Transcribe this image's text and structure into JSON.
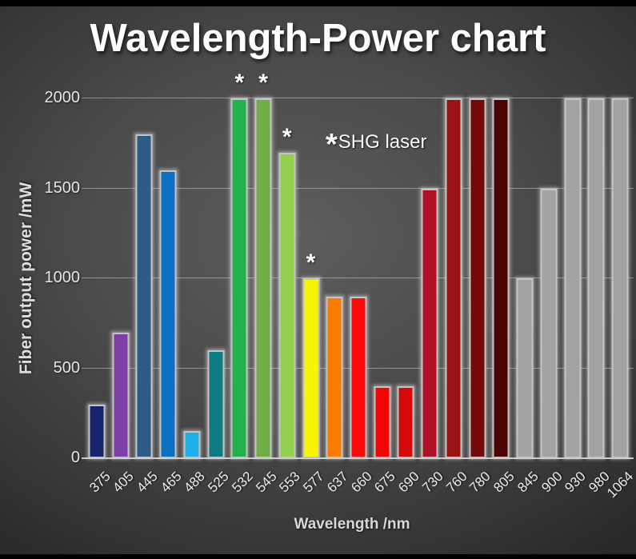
{
  "slide": {
    "title": "Wavelength-Power chart"
  },
  "chart_data": {
    "type": "bar",
    "title": "Wavelength-Power chart",
    "xlabel": "Wavelength /nm",
    "ylabel": "Fiber output power /mW",
    "ylim": [
      0,
      2000
    ],
    "yticks": [
      0,
      500,
      1000,
      1500,
      2000
    ],
    "grid": true,
    "legend": {
      "marker": "*",
      "label": "SHG laser",
      "position": "upper-middle"
    },
    "shg_marker": "*",
    "bars": [
      {
        "wavelength": "375",
        "power": 300,
        "color": "#16246b",
        "shg": false
      },
      {
        "wavelength": "405",
        "power": 700,
        "color": "#7b3fa5",
        "shg": false
      },
      {
        "wavelength": "445",
        "power": 1800,
        "color": "#2e5a87",
        "shg": false
      },
      {
        "wavelength": "465",
        "power": 1600,
        "color": "#0c70c2",
        "shg": false
      },
      {
        "wavelength": "488",
        "power": 150,
        "color": "#1faee9",
        "shg": false
      },
      {
        "wavelength": "525",
        "power": 600,
        "color": "#0e7b82",
        "shg": false
      },
      {
        "wavelength": "532",
        "power": 2000,
        "color": "#22b14c",
        "shg": true
      },
      {
        "wavelength": "545",
        "power": 2000,
        "color": "#70ad47",
        "shg": true
      },
      {
        "wavelength": "553",
        "power": 1700,
        "color": "#92d050",
        "shg": true
      },
      {
        "wavelength": "577",
        "power": 1000,
        "color": "#faf400",
        "shg": true
      },
      {
        "wavelength": "637",
        "power": 900,
        "color": "#f97c00",
        "shg": false
      },
      {
        "wavelength": "660",
        "power": 900,
        "color": "#fa0a0a",
        "shg": false
      },
      {
        "wavelength": "675",
        "power": 400,
        "color": "#f50505",
        "shg": false
      },
      {
        "wavelength": "690",
        "power": 400,
        "color": "#d40a0a",
        "shg": false
      },
      {
        "wavelength": "730",
        "power": 1500,
        "color": "#b01025",
        "shg": false
      },
      {
        "wavelength": "760",
        "power": 2000,
        "color": "#9b1212",
        "shg": false
      },
      {
        "wavelength": "780",
        "power": 2000,
        "color": "#730909",
        "shg": false
      },
      {
        "wavelength": "805",
        "power": 2000,
        "color": "#4a0404",
        "shg": false
      },
      {
        "wavelength": "845",
        "power": 1000,
        "color": "#a3a3a3",
        "shg": false
      },
      {
        "wavelength": "900",
        "power": 1500,
        "color": "#a3a3a3",
        "shg": false
      },
      {
        "wavelength": "930",
        "power": 2000,
        "color": "#a3a3a3",
        "shg": false
      },
      {
        "wavelength": "980",
        "power": 2000,
        "color": "#a3a3a3",
        "shg": false
      },
      {
        "wavelength": "1064",
        "power": 2000,
        "color": "#a3a3a3",
        "shg": false
      }
    ]
  }
}
